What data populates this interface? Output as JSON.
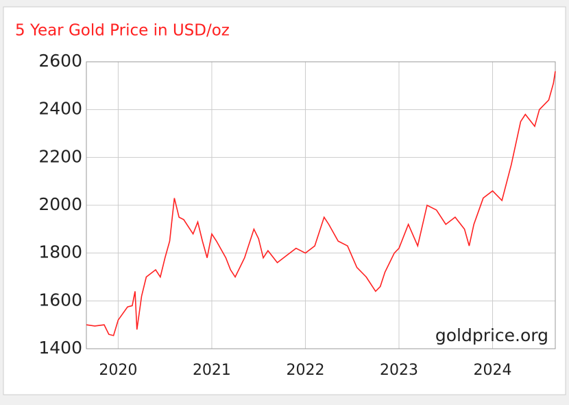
{
  "chart_data": {
    "type": "line",
    "title": "5 Year Gold Price in USD/oz",
    "watermark": "goldprice.org",
    "series": [
      {
        "name": "Gold Price",
        "color": "#ff2020",
        "x": [
          2019.66,
          2019.75,
          2019.85,
          2019.9,
          2019.95,
          2020.0,
          2020.1,
          2020.15,
          2020.18,
          2020.2,
          2020.25,
          2020.3,
          2020.4,
          2020.45,
          2020.5,
          2020.55,
          2020.6,
          2020.65,
          2020.7,
          2020.8,
          2020.85,
          2020.9,
          2020.95,
          2021.0,
          2021.05,
          2021.15,
          2021.2,
          2021.25,
          2021.35,
          2021.45,
          2021.5,
          2021.55,
          2021.6,
          2021.7,
          2021.8,
          2021.9,
          2022.0,
          2022.1,
          2022.2,
          2022.25,
          2022.35,
          2022.45,
          2022.55,
          2022.65,
          2022.75,
          2022.8,
          2022.85,
          2022.95,
          2023.0,
          2023.1,
          2023.2,
          2023.3,
          2023.4,
          2023.5,
          2023.6,
          2023.7,
          2023.75,
          2023.8,
          2023.9,
          2024.0,
          2024.1,
          2024.2,
          2024.3,
          2024.35,
          2024.45,
          2024.5,
          2024.6,
          2024.65,
          2024.67
        ],
        "values": [
          1500,
          1495,
          1500,
          1460,
          1455,
          1520,
          1575,
          1580,
          1640,
          1480,
          1620,
          1700,
          1730,
          1700,
          1780,
          1850,
          2030,
          1950,
          1940,
          1880,
          1930,
          1850,
          1780,
          1880,
          1850,
          1780,
          1730,
          1700,
          1780,
          1900,
          1860,
          1780,
          1810,
          1760,
          1790,
          1820,
          1800,
          1830,
          1950,
          1920,
          1850,
          1830,
          1740,
          1700,
          1640,
          1660,
          1720,
          1800,
          1820,
          1920,
          1830,
          2000,
          1980,
          1920,
          1950,
          1900,
          1830,
          1920,
          2030,
          2060,
          2020,
          2170,
          2350,
          2380,
          2330,
          2400,
          2440,
          2510,
          2560
        ]
      }
    ],
    "xlim": [
      2019.66,
      2024.67
    ],
    "xticks": [
      2020,
      2021,
      2022,
      2023,
      2024
    ],
    "ylim": [
      1400,
      2600
    ],
    "yticks": [
      1400,
      1600,
      1800,
      2000,
      2200,
      2400,
      2600
    ],
    "grid": true
  }
}
